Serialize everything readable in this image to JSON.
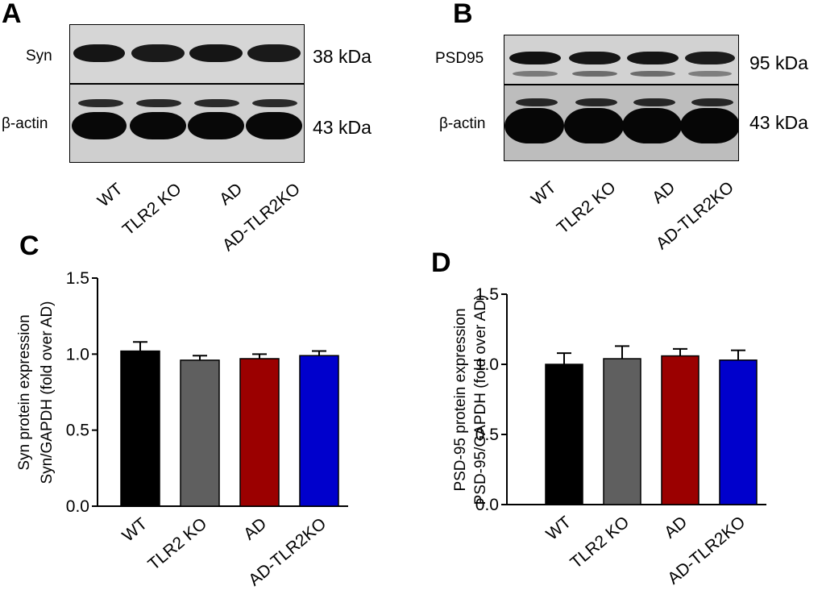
{
  "figure": {
    "A": {
      "letter": "A",
      "top_label": "Syn",
      "top_kda": "38 kDa",
      "bottom_label": "β-actin",
      "bottom_kda": "43 kDa",
      "lanes": [
        "WT",
        "TLR2 KO",
        "AD",
        "AD-TLR2KO"
      ]
    },
    "B": {
      "letter": "B",
      "top_label": "PSD95",
      "top_kda": "95 kDa",
      "bottom_label": "β-actin",
      "bottom_kda": "43 kDa",
      "lanes": [
        "WT",
        "TLR2 KO",
        "AD",
        "AD-TLR2KO"
      ]
    },
    "C": {
      "letter": "C"
    },
    "D": {
      "letter": "D"
    }
  },
  "chart_data": [
    {
      "type": "bar",
      "panel": "C",
      "categories": [
        "WT",
        "TLR2 KO",
        "AD",
        "AD-TLR2KO"
      ],
      "values": [
        1.02,
        0.96,
        0.97,
        0.99
      ],
      "errors": [
        0.06,
        0.03,
        0.03,
        0.03
      ],
      "colors": [
        "#000000",
        "#5f5f5f",
        "#9b0000",
        "#0000cc"
      ],
      "ylabel_line1": "Syn protein expression",
      "ylabel_line2": "Syn/GAPDH (fold over AD)",
      "ylim": [
        0,
        1.5
      ],
      "yticks": [
        "0.0",
        "0.5",
        "1.0",
        "1.5"
      ]
    },
    {
      "type": "bar",
      "panel": "D",
      "categories": [
        "WT",
        "TLR2 KO",
        "AD",
        "AD-TLR2KO"
      ],
      "values": [
        1.0,
        1.04,
        1.06,
        1.03
      ],
      "errors": [
        0.08,
        0.09,
        0.05,
        0.07
      ],
      "colors": [
        "#000000",
        "#5f5f5f",
        "#9b0000",
        "#0000cc"
      ],
      "ylabel_line1": "PSD-95 protein expression",
      "ylabel_line2": "PSD-95/GAPDH (fold over AD)",
      "ylim": [
        0,
        1.5
      ],
      "yticks": [
        "0.0",
        "0.5",
        "1.0",
        "1.5"
      ]
    }
  ]
}
